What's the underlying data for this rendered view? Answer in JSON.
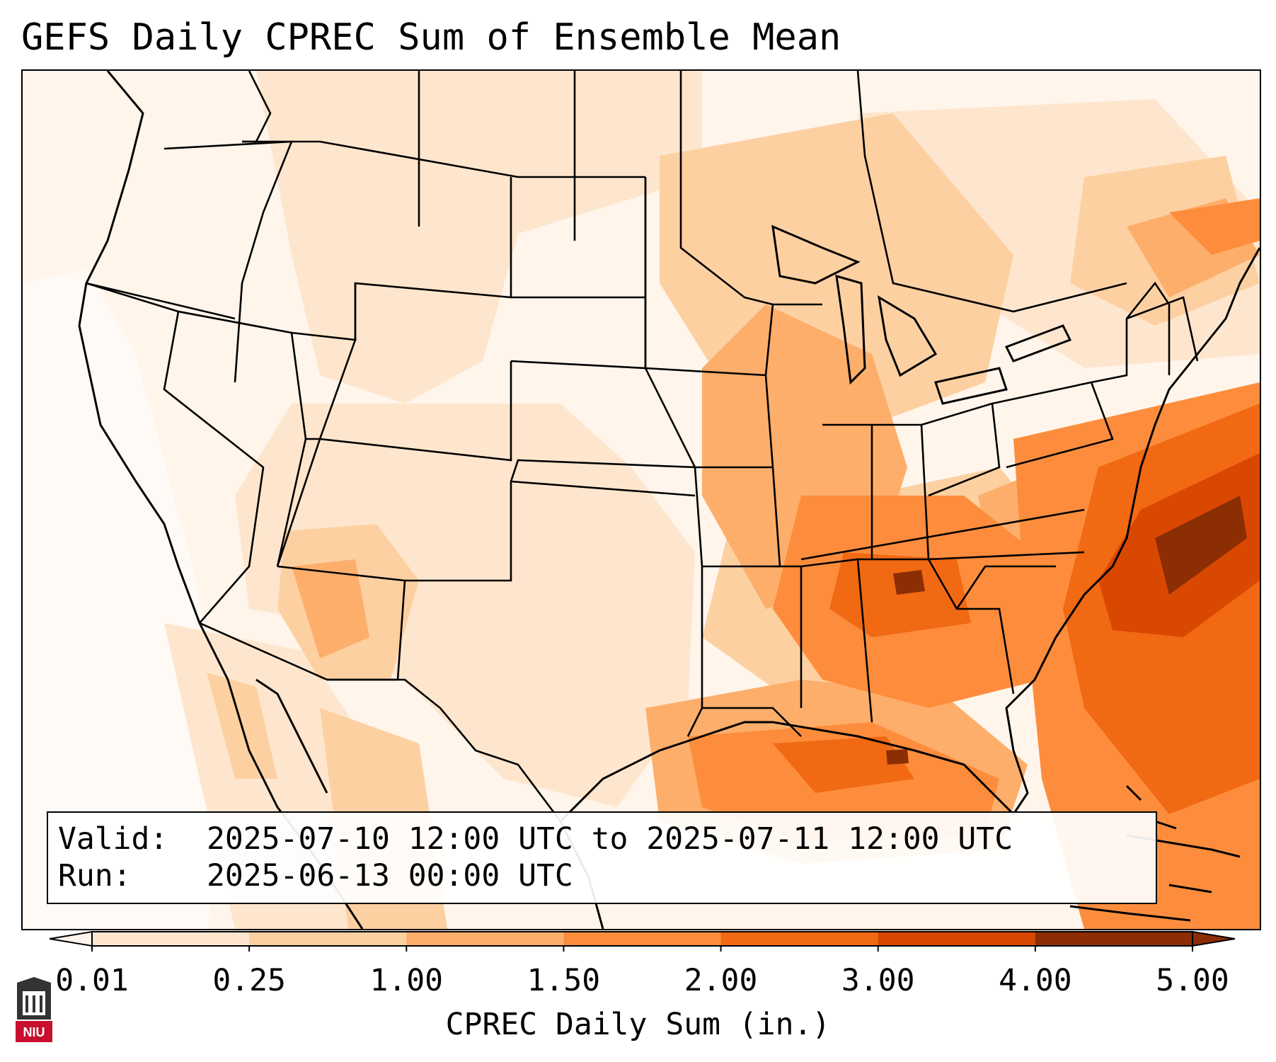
{
  "title": "GEFS Daily CPREC Sum of Ensemble Mean",
  "info": {
    "valid_label": "Valid:",
    "valid_value": "2025-07-10 12:00 UTC to 2025-07-11 12:00 UTC",
    "run_label": "Run:",
    "run_value": "2025-06-13 00:00 UTC"
  },
  "colorbar": {
    "label": "CPREC Daily Sum (in.)",
    "ticks": [
      "0.01",
      "0.25",
      "1.00",
      "1.50",
      "2.00",
      "3.00",
      "4.00",
      "5.00"
    ],
    "colors": [
      "#fff5eb",
      "#fee6ce",
      "#fdd0a2",
      "#fdae6b",
      "#fd8d3c",
      "#f16913",
      "#d94801",
      "#8c2d04"
    ],
    "extend": "both"
  },
  "logo": {
    "text": "NIU"
  }
}
